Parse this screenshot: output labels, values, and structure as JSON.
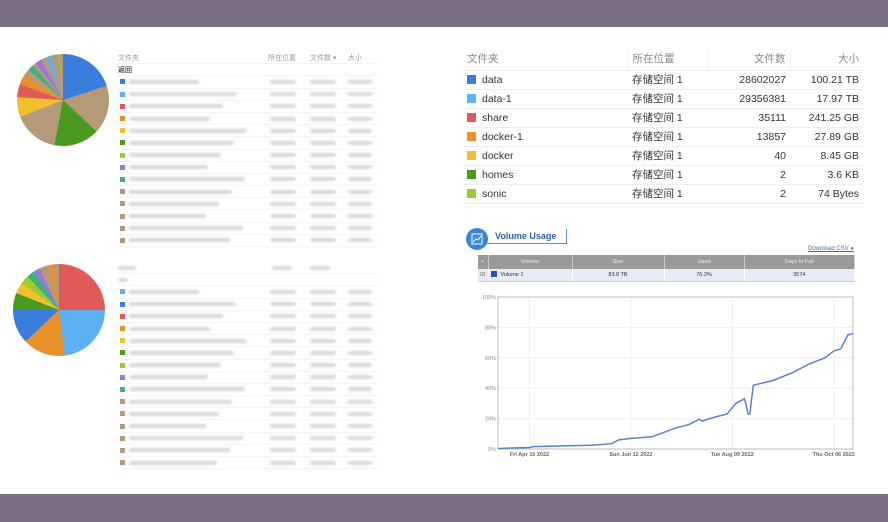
{
  "left_tables": {
    "headers": [
      "文件夹",
      "所在位置",
      "文件数 ▾",
      "大小"
    ],
    "group_label": "返回",
    "top_swatches": [
      "#3b7ddd",
      "#5eb0f5",
      "#e05a5a",
      "#e8902a",
      "#f0c030",
      "#4a9a20",
      "#9cc830",
      "#a070e8",
      "#40b080",
      "#b49a78",
      "#b49a78",
      "#b49a78",
      "#b49a78",
      "#b49a78"
    ],
    "bottom_swatches": [
      "#5eb0f5",
      "#3b7ddd",
      "#e05a5a",
      "#e8902a",
      "#f0c030",
      "#4a9a20",
      "#9cc830",
      "#a070e8",
      "#40b080",
      "#b49a78",
      "#b49a78",
      "#b49a78",
      "#b49a78",
      "#b49a78",
      "#b49a78"
    ]
  },
  "folder_table": {
    "headers": [
      "文件夹",
      "所在位置",
      "文件数",
      "大小"
    ],
    "rows": [
      {
        "name": "data",
        "color": "#3b7ddd",
        "location": "存储空间 1",
        "files": "28602027",
        "size": "100.21 TB"
      },
      {
        "name": "data-1",
        "color": "#5eb0f5",
        "location": "存储空间 1",
        "files": "29356381",
        "size": "17.97 TB"
      },
      {
        "name": "share",
        "color": "#e05a5a",
        "location": "存储空间 1",
        "files": "35111",
        "size": "241.25 GB"
      },
      {
        "name": "docker-1",
        "color": "#e8902a",
        "location": "存储空间 1",
        "files": "13857",
        "size": "27.89 GB"
      },
      {
        "name": "docker",
        "color": "#f0c030",
        "location": "存储空间 1",
        "files": "40",
        "size": "8.45 GB"
      },
      {
        "name": "homes",
        "color": "#4a9a20",
        "location": "存储空间 1",
        "files": "2",
        "size": "3.6 KB"
      },
      {
        "name": "sonic",
        "color": "#9cc830",
        "location": "存储空间 1",
        "files": "2",
        "size": "74 Bytes"
      }
    ]
  },
  "volume_usage": {
    "title": "Volume Usage",
    "download_label": "Download CSV",
    "headers": [
      "Volume",
      "Size",
      "Used",
      "Days to Full"
    ],
    "row": {
      "name": "Volume 1",
      "color": "#2a4fa8",
      "size": "83.8 TB",
      "used": "76.3%",
      "days_to_full": "3574"
    }
  },
  "chart_data": {
    "type": "line",
    "ylim": [
      0,
      100
    ],
    "yticks": [
      "0%",
      "20%",
      "40%",
      "60%",
      "80%",
      "100%"
    ],
    "xticks": [
      "Fri Apr 15 2022",
      "Sun Jun 12 2022",
      "Tue Aug 09 2022",
      "Thu Oct 06 2022"
    ],
    "xlim": [
      "2022-03-28",
      "2022-10-17"
    ],
    "grid": true,
    "color": "#5b82c8",
    "series": [
      {
        "points": [
          [
            "2022-03-28",
            0.3
          ],
          [
            "2022-04-15",
            1
          ],
          [
            "2022-04-17",
            1.6
          ],
          [
            "2022-05-20",
            2.5
          ],
          [
            "2022-06-01",
            3.5
          ],
          [
            "2022-06-05",
            6
          ],
          [
            "2022-06-12",
            7
          ],
          [
            "2022-06-24",
            8
          ],
          [
            "2022-07-01",
            11
          ],
          [
            "2022-07-08",
            14
          ],
          [
            "2022-07-15",
            16
          ],
          [
            "2022-07-21",
            19.5
          ],
          [
            "2022-07-23",
            18.5
          ],
          [
            "2022-07-30",
            21
          ],
          [
            "2022-08-06",
            23
          ],
          [
            "2022-08-11",
            30
          ],
          [
            "2022-08-16",
            33
          ],
          [
            "2022-08-18",
            23
          ],
          [
            "2022-08-19",
            23
          ],
          [
            "2022-08-21",
            42
          ],
          [
            "2022-09-01",
            45
          ],
          [
            "2022-09-12",
            50
          ],
          [
            "2022-09-22",
            56
          ],
          [
            "2022-10-01",
            60
          ],
          [
            "2022-10-06",
            64.5
          ],
          [
            "2022-10-10",
            66
          ],
          [
            "2022-10-14",
            75
          ],
          [
            "2022-10-17",
            76
          ]
        ]
      }
    ]
  }
}
